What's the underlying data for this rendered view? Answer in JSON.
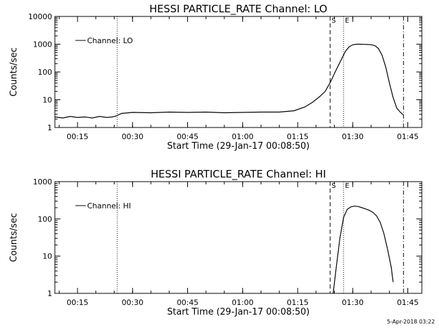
{
  "footer": {
    "timestamp": "5-Apr-2018 03:22"
  },
  "chart_data": [
    {
      "type": "line",
      "title": "HESSI PARTICLE_RATE Channel: LO",
      "xlabel": "Start Time (29-Jan-17 00:08:50)",
      "ylabel": "Counts/sec",
      "yscale": "log",
      "ylim": [
        1,
        10000
      ],
      "xlim": [
        "00:08:50",
        "01:48:50"
      ],
      "xticks": [
        "00:15",
        "00:30",
        "00:45",
        "01:00",
        "01:15",
        "01:30",
        "01:45"
      ],
      "yticks": [
        "1",
        "10",
        "100",
        "1000",
        "10000"
      ],
      "legend": {
        "entry": "Channel: LO",
        "position": "top-left"
      },
      "markers": [
        {
          "time": "00:25:50",
          "style": "dotted",
          "label": ""
        },
        {
          "time": "01:23:50",
          "style": "dashed",
          "label": "S"
        },
        {
          "time": "01:27:30",
          "style": "dotted",
          "label": "E"
        },
        {
          "time": "01:43:50",
          "style": "dash-dot",
          "label": ""
        }
      ],
      "series": [
        {
          "name": "Channel: LO",
          "x": [
            "00:08:50",
            "00:11:00",
            "00:13:00",
            "00:15:00",
            "00:17:00",
            "00:19:00",
            "00:21:00",
            "00:23:00",
            "00:24:30",
            "00:25:30",
            "00:27:00",
            "00:30:00",
            "00:35:00",
            "00:40:00",
            "00:45:00",
            "00:50:00",
            "00:55:00",
            "01:00:00",
            "01:05:00",
            "01:10:00",
            "01:14:00",
            "01:17:00",
            "01:19:00",
            "01:21:00",
            "01:22:30",
            "01:24:00",
            "01:25:30",
            "01:27:00",
            "01:28:00",
            "01:29:00",
            "01:30:00",
            "01:31:00",
            "01:32:00",
            "01:33:00",
            "01:34:00",
            "01:35:00",
            "01:36:00",
            "01:37:00",
            "01:38:00",
            "01:39:00",
            "01:40:00",
            "01:41:00",
            "01:42:00",
            "01:43:00",
            "01:43:50"
          ],
          "values": [
            2.4,
            2.2,
            2.5,
            2.3,
            2.4,
            2.2,
            2.5,
            2.3,
            2.4,
            2.6,
            3.2,
            3.5,
            3.4,
            3.6,
            3.5,
            3.6,
            3.4,
            3.5,
            3.6,
            3.6,
            4.0,
            5.5,
            8,
            13,
            20,
            45,
            120,
            300,
            550,
            800,
            950,
            1000,
            1000,
            990,
            980,
            960,
            900,
            700,
            400,
            150,
            40,
            12,
            5,
            3.5,
            2.8
          ]
        }
      ]
    },
    {
      "type": "line",
      "title": "HESSI PARTICLE_RATE Channel: HI",
      "xlabel": "Start Time (29-Jan-17 00:08:50)",
      "ylabel": "Counts/sec",
      "yscale": "log",
      "ylim": [
        1,
        1000
      ],
      "xlim": [
        "00:08:50",
        "01:48:50"
      ],
      "xticks": [
        "00:15",
        "00:30",
        "00:45",
        "01:00",
        "01:15",
        "01:30",
        "01:45"
      ],
      "yticks": [
        "1",
        "10",
        "100",
        "1000"
      ],
      "legend": {
        "entry": "Channel: HI",
        "position": "top-left"
      },
      "markers": [
        {
          "time": "00:25:50",
          "style": "dotted",
          "label": ""
        },
        {
          "time": "01:23:50",
          "style": "dashed",
          "label": "S"
        },
        {
          "time": "01:27:30",
          "style": "dotted",
          "label": "E"
        },
        {
          "time": "01:43:50",
          "style": "dash-dot",
          "label": ""
        }
      ],
      "series": [
        {
          "name": "Channel: HI",
          "x": [
            "01:24:40",
            "01:25:30",
            "01:26:30",
            "01:27:30",
            "01:28:30",
            "01:29:30",
            "01:30:30",
            "01:31:30",
            "01:32:30",
            "01:33:30",
            "01:34:30",
            "01:35:30",
            "01:36:30",
            "01:37:30",
            "01:38:30",
            "01:39:30",
            "01:40:30",
            "01:41:00"
          ],
          "values": [
            1,
            5,
            30,
            110,
            180,
            210,
            220,
            215,
            200,
            185,
            170,
            150,
            120,
            80,
            40,
            15,
            5,
            2
          ]
        }
      ]
    }
  ]
}
